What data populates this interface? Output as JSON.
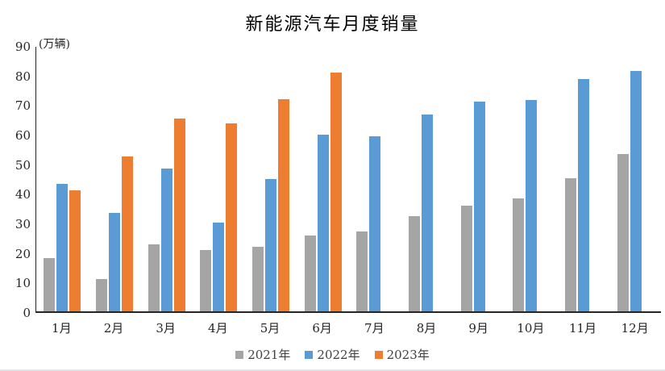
{
  "title": "新能源汽车月度销量",
  "chart_data": {
    "type": "bar",
    "title": "新能源汽车月度销量",
    "unit_label": "(万辆)",
    "categories": [
      "1月",
      "2月",
      "3月",
      "4月",
      "5月",
      "6月",
      "7月",
      "8月",
      "9月",
      "10月",
      "11月",
      "12月"
    ],
    "series": [
      {
        "name": "2021年",
        "color": "#A5A5A5",
        "values": [
          17.9,
          11.0,
          22.6,
          20.6,
          21.7,
          25.6,
          27.1,
          32.1,
          35.7,
          38.3,
          45.0,
          53.1
        ]
      },
      {
        "name": "2022年",
        "color": "#5B9BD5",
        "values": [
          43.1,
          33.4,
          48.4,
          29.9,
          44.7,
          59.6,
          59.3,
          66.6,
          70.8,
          71.4,
          78.6,
          81.4
        ]
      },
      {
        "name": "2023年",
        "color": "#ED7D31",
        "values": [
          40.8,
          52.5,
          65.3,
          63.6,
          71.7,
          80.6,
          null,
          null,
          null,
          null,
          null,
          null
        ]
      }
    ],
    "y_axis": {
      "min": 0,
      "max": 90,
      "step": 10,
      "tick_labels": [
        "0",
        "10",
        "20",
        "30",
        "40",
        "50",
        "60",
        "70",
        "80",
        "90"
      ]
    },
    "grid": false,
    "legend_position": "bottom"
  },
  "colors": {
    "background": "#ffffff",
    "axis_line": "#262626",
    "tick_text": "#262626",
    "legend_text": "#404040"
  }
}
